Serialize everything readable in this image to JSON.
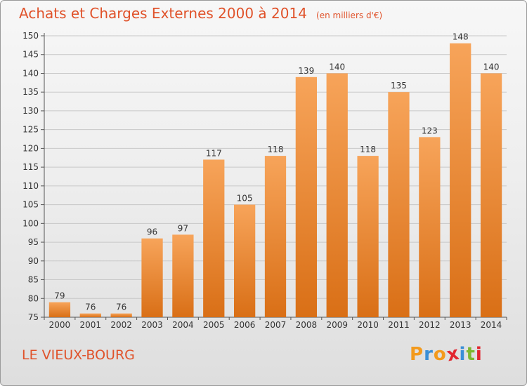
{
  "header": {
    "title": "Achats et Charges Externes 2000 à 2014",
    "unit": "(en milliers d'€)"
  },
  "footer": {
    "commune": "LE VIEUX-BOURG",
    "brand": "Proxiti"
  },
  "colors": {
    "title": "#e0522a",
    "bar_top": "#f7a45a",
    "bar_bottom": "#d96f16",
    "brand_letters": [
      "#f39a1c",
      "#3a8fd6",
      "#f39a1c",
      "#e2262f",
      "#3a8fd6",
      "#7cb82f",
      "#e2262f"
    ]
  },
  "chart_data": {
    "type": "bar",
    "categories": [
      "2000",
      "2001",
      "2002",
      "2003",
      "2004",
      "2005",
      "2006",
      "2007",
      "2008",
      "2009",
      "2010",
      "2011",
      "2012",
      "2013",
      "2014"
    ],
    "values": [
      79,
      76,
      76,
      96,
      97,
      117,
      105,
      118,
      139,
      140,
      118,
      135,
      123,
      148,
      140
    ],
    "title": "Achats et Charges Externes 2000 à 2014",
    "subtitle": "(en milliers d'€)",
    "xlabel": "",
    "ylabel": "",
    "ylim": [
      75,
      150
    ],
    "yticks": [
      75,
      80,
      85,
      90,
      95,
      100,
      105,
      110,
      115,
      120,
      125,
      130,
      135,
      140,
      145,
      150
    ],
    "grid": true,
    "legend": "none"
  }
}
